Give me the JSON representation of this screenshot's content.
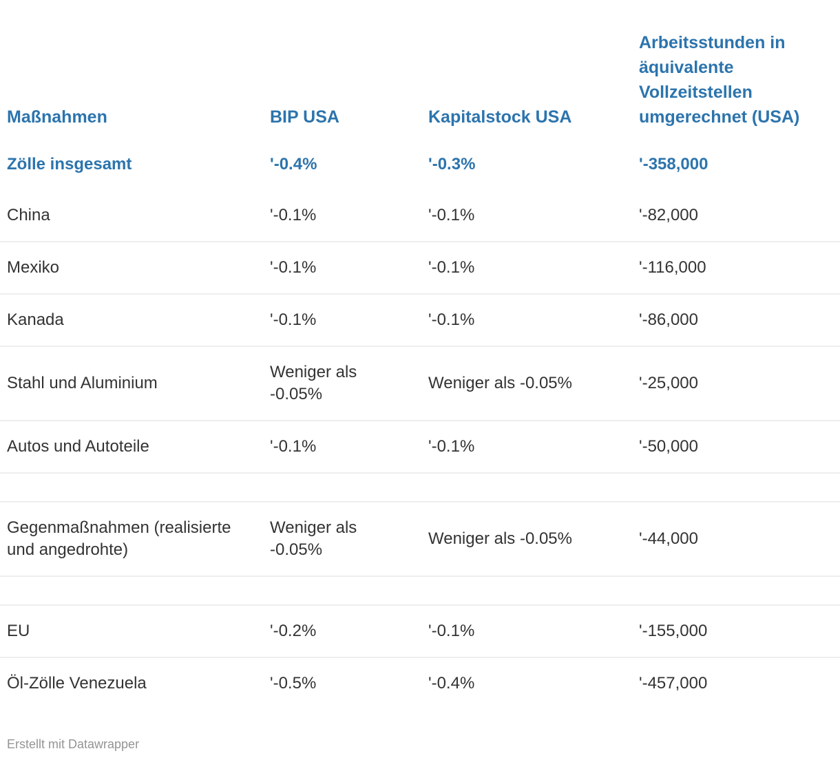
{
  "colors": {
    "accent": "#2c74ad",
    "text": "#333333",
    "divider": "#eeeeee",
    "footer_text": "#949494",
    "background": "#ffffff"
  },
  "footer": {
    "credit": "Erstellt mit Datawrapper"
  },
  "chart_data": {
    "type": "table",
    "columns": [
      "Maßnahmen",
      "BIP USA",
      "Kapitalstock USA",
      "Arbeitsstunden in äquivalente Vollzeitstellen umgerechnet (USA)"
    ],
    "rows": [
      {
        "style": "total",
        "cells": [
          "Zölle insgesamt",
          "'-0.4%",
          "'-0.3%",
          "'-358,000"
        ]
      },
      {
        "style": "data",
        "cells": [
          "China",
          "'-0.1%",
          "'-0.1%",
          "'-82,000"
        ]
      },
      {
        "style": "data",
        "cells": [
          "Mexiko",
          "'-0.1%",
          "'-0.1%",
          "'-116,000"
        ]
      },
      {
        "style": "data",
        "cells": [
          "Kanada",
          "'-0.1%",
          "'-0.1%",
          "'-86,000"
        ]
      },
      {
        "style": "data",
        "cells": [
          "Stahl und Aluminium",
          "Weniger als -0.05%",
          "Weniger als -0.05%",
          "'-25,000"
        ]
      },
      {
        "style": "data",
        "cells": [
          "Autos und Autoteile",
          "'-0.1%",
          "'-0.1%",
          "'-50,000"
        ]
      },
      {
        "style": "spacer",
        "cells": [
          "",
          "",
          "",
          ""
        ]
      },
      {
        "style": "data",
        "cells": [
          "Gegenmaßnahmen (realisierte und angedrohte)",
          "Weniger als -0.05%",
          "Weniger als -0.05%",
          "'-44,000"
        ]
      },
      {
        "style": "spacer",
        "cells": [
          "",
          "",
          "",
          ""
        ]
      },
      {
        "style": "data",
        "cells": [
          "EU",
          "'-0.2%",
          "'-0.1%",
          "'-155,000"
        ]
      },
      {
        "style": "data",
        "cells": [
          "Öl-Zölle Venezuela",
          "'-0.5%",
          "'-0.4%",
          "'-457,000"
        ]
      }
    ]
  }
}
